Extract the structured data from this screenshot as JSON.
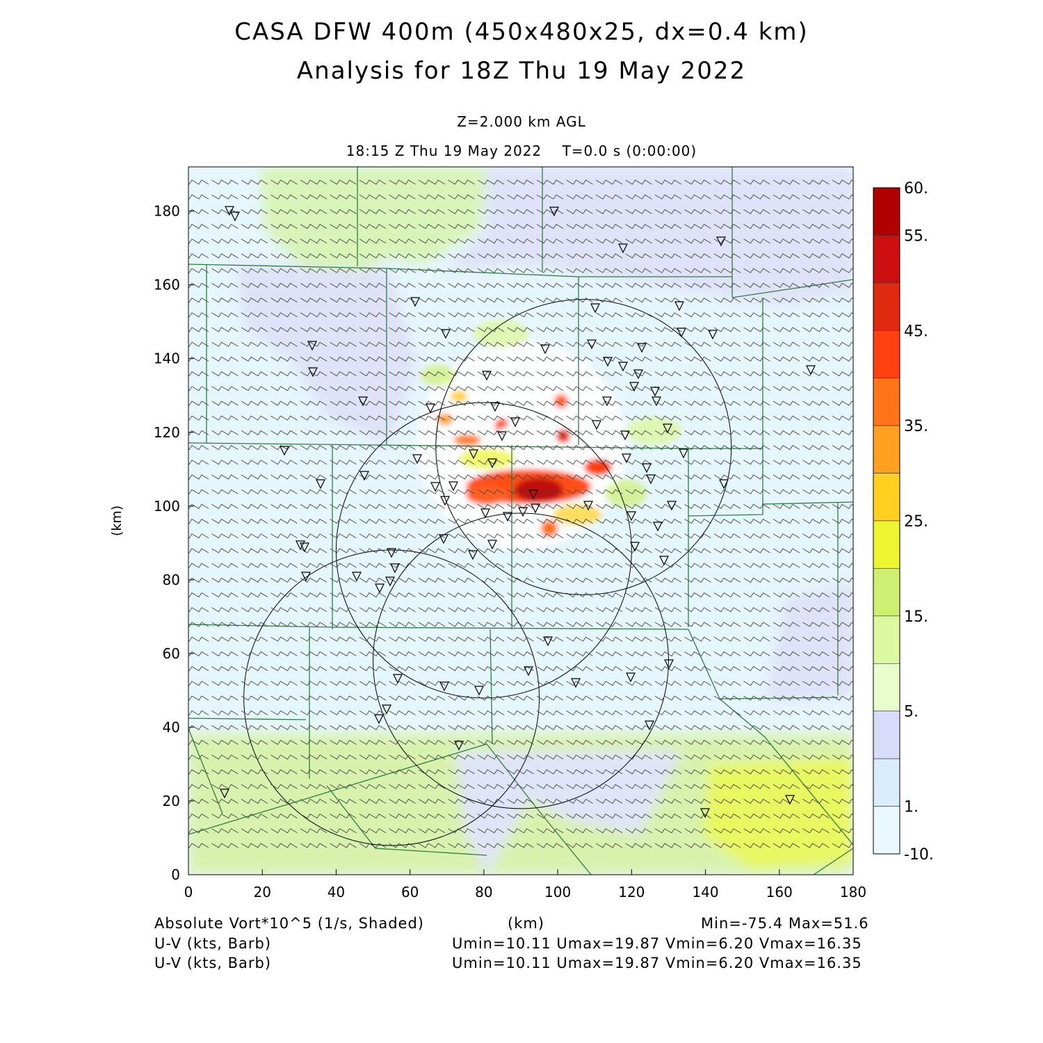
{
  "header": {
    "title_line1": "CASA DFW 400m (450x480x25, dx=0.4 km)",
    "title_line2": "Analysis for 18Z Thu 19 May 2022",
    "level": "Z=2.000 km AGL",
    "valid_time": "18:15 Z Thu 19 May 2022    T=0.0 s (0:00:00)"
  },
  "footer": {
    "field1": "Absolute Vort*10^5 (1/s, Shaded)",
    "xunit": "(km)",
    "minmax": "Min=-75.4 Max=51.6",
    "field2": "U-V (kts, Barb)",
    "stats2": "Umin=10.11 Umax=19.87 Vmin=6.20 Vmax=16.35",
    "field3": "U-V (kts, Barb)",
    "stats3": "Umin=10.11 Umax=19.87 Vmin=6.20 Vmax=16.35"
  },
  "chart_data": {
    "type": "heatmap",
    "ylabel": "(km)",
    "xlabel": "(km)",
    "xlim": [
      0,
      180
    ],
    "ylim": [
      0,
      192
    ],
    "x_ticks": [
      "0",
      "20",
      "40",
      "60",
      "80",
      "100",
      "120",
      "140",
      "160",
      "180"
    ],
    "y_ticks": [
      "0",
      "20",
      "40",
      "60",
      "80",
      "100",
      "120",
      "140",
      "160",
      "180"
    ],
    "x_tick_values": [
      0,
      20,
      40,
      60,
      80,
      100,
      120,
      140,
      160,
      180
    ],
    "y_tick_values": [
      0,
      20,
      40,
      60,
      80,
      100,
      120,
      140,
      160,
      180
    ],
    "colorbar": {
      "labels": [
        "60.",
        "55.",
        "45.",
        "35.",
        "25.",
        "15.",
        "5.",
        "1.",
        "-10."
      ],
      "colors": [
        "#b00000",
        "#cc0f0f",
        "#e02a10",
        "#ff4010",
        "#ff7418",
        "#ffa020",
        "#ffd020",
        "#ecf530",
        "#cdf070",
        "#dcf8a0",
        "#e8fccc",
        "#d8dcf8",
        "#d8ecfc",
        "#eaf8ff"
      ]
    },
    "radar_circles_km": [
      {
        "cx": 107,
        "cy": 116,
        "r": 40
      },
      {
        "cx": 80,
        "cy": 88,
        "r": 40
      },
      {
        "cx": 90,
        "cy": 58,
        "r": 40
      },
      {
        "cx": 55,
        "cy": 48,
        "r": 40
      }
    ],
    "background_color": "#e6f6fd"
  }
}
